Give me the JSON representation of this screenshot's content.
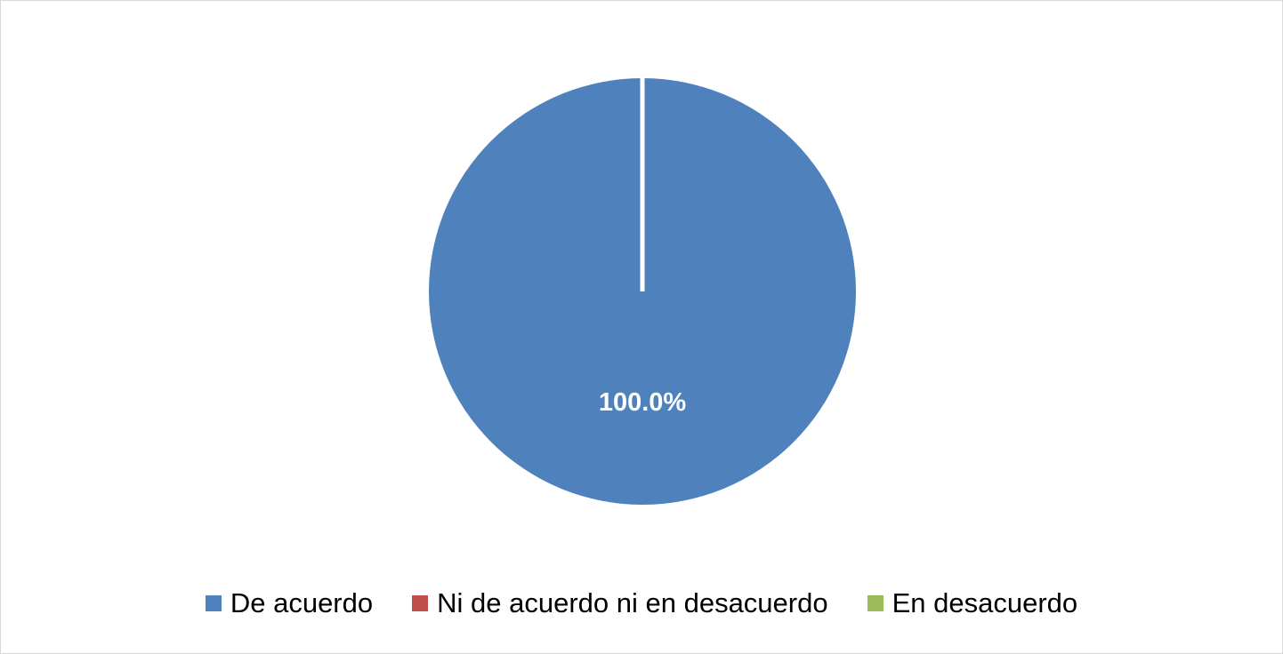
{
  "chart_data": {
    "type": "pie",
    "categories": [
      "De acuerdo",
      "Ni de acuerdo ni en desacuerdo",
      "En desacuerdo"
    ],
    "values": [
      100,
      0,
      0
    ],
    "colors": [
      "#4f81bd",
      "#c0504d",
      "#9bbb59"
    ],
    "data_labels": [
      "100.0%"
    ],
    "legend_position": "bottom"
  }
}
